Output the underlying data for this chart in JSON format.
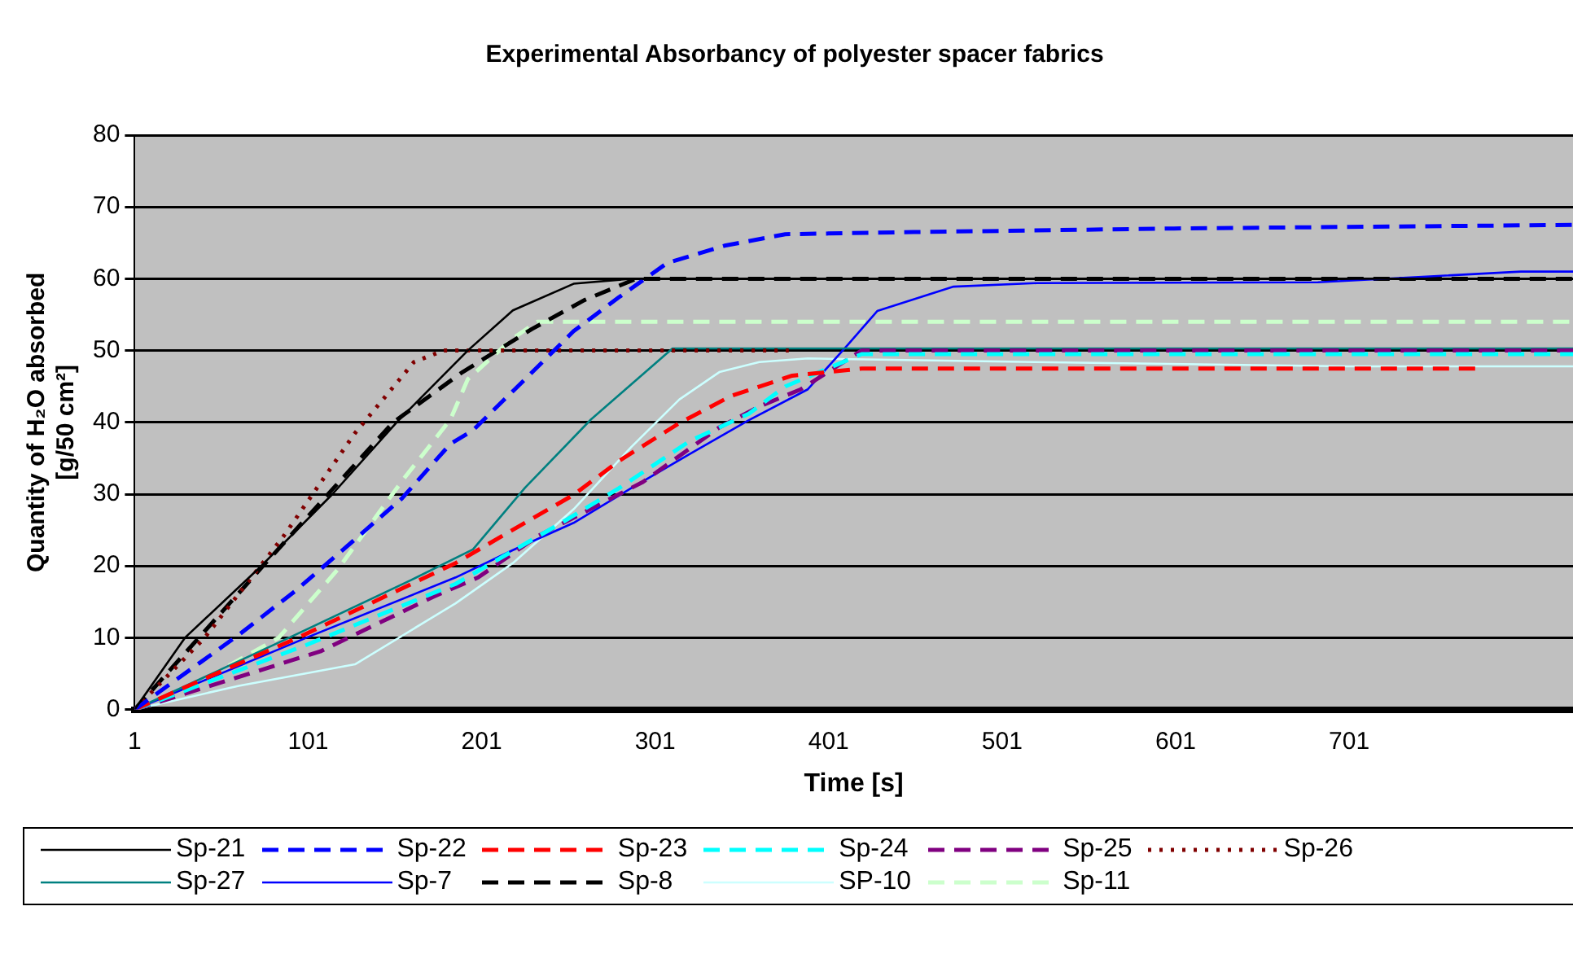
{
  "chart_data": {
    "type": "line",
    "title": "Experimental Absorbancy of polyester spacer fabrics",
    "xlabel": "Time [s]",
    "ylabel": "Quantity of H₂O absorbed [g/50 cm²]",
    "xlim": [
      1,
      830
    ],
    "xticks": [
      1,
      101,
      201,
      301,
      401,
      501,
      601,
      701
    ],
    "ylim": [
      0,
      80
    ],
    "yticks": [
      0,
      10,
      20,
      30,
      40,
      50,
      60,
      70,
      80
    ],
    "grid": "y",
    "legend": "bottom",
    "marker": "none",
    "series": [
      {
        "name": "Sp-21",
        "color": "#000000",
        "line_style": "solid",
        "x": [
          1,
          30,
          74,
          115,
          152,
          193,
          219,
          254,
          287,
          330,
          830
        ],
        "values": [
          0,
          10,
          20,
          30,
          40,
          50,
          55.6,
          59.3,
          60,
          60,
          60
        ]
      },
      {
        "name": "Sp-22",
        "color": "#0000ff",
        "line_style": "dashed",
        "x": [
          1,
          61,
          94,
          128,
          155,
          183,
          196,
          226,
          254,
          280,
          308,
          341,
          376,
          450,
          600,
          830
        ],
        "values": [
          0,
          10.4,
          16.6,
          23.7,
          29.4,
          37,
          38.9,
          46,
          52.7,
          57.4,
          62.2,
          64.6,
          66.2,
          66.5,
          67,
          67.5
        ]
      },
      {
        "name": "Sp-23",
        "color": "#ff0000",
        "line_style": "dashed",
        "x": [
          1,
          95,
          186,
          223,
          254,
          280,
          315,
          345,
          380,
          420,
          775
        ],
        "values": [
          0,
          10,
          20.4,
          25.6,
          29.9,
          34.6,
          39.9,
          43.7,
          46.5,
          47.5,
          47.5
        ]
      },
      {
        "name": "Sp-24",
        "color": "#00ffff",
        "line_style": "dashed",
        "x": [
          1,
          100,
          186,
          247,
          280,
          321,
          355,
          376,
          420,
          830
        ],
        "values": [
          0,
          9,
          17.5,
          26,
          30.8,
          37.4,
          41.2,
          45,
          49.5,
          49.5
        ]
      },
      {
        "name": "Sp-25",
        "color": "#800080",
        "line_style": "dashed",
        "x": [
          1,
          108,
          173,
          199,
          233,
          294,
          338,
          361,
          385,
          420,
          830
        ],
        "values": [
          0,
          8.1,
          15.7,
          18.4,
          24.1,
          31.7,
          39.3,
          42.2,
          44.6,
          50,
          50
        ]
      },
      {
        "name": "Sp-26",
        "color": "#800000",
        "line_style": "dotted",
        "x": [
          1,
          41,
          87,
          128,
          162,
          179,
          378
        ],
        "values": [
          0,
          9.9,
          24.2,
          38.5,
          48.4,
          50,
          50
        ]
      },
      {
        "name": "Sp-27",
        "color": "#008080",
        "line_style": "solid",
        "x": [
          1,
          90,
          160,
          196,
          226,
          264,
          311,
          830
        ],
        "values": [
          0,
          10,
          18,
          22.3,
          30.9,
          40.4,
          50.3,
          50.3
        ]
      },
      {
        "name": "Sp-7",
        "color": "#0000ff",
        "line_style": "solid",
        "x": [
          1,
          100,
          186,
          219,
          254,
          287,
          321,
          355,
          389,
          412,
          429,
          473,
          521,
          683,
          800,
          830
        ],
        "values": [
          0,
          10,
          18.4,
          22.2,
          26,
          30.8,
          35.6,
          40.3,
          44.6,
          50.8,
          55.5,
          58.9,
          59.4,
          59.5,
          61,
          61
        ]
      },
      {
        "name": "Sp-8",
        "color": "#000000",
        "line_style": "dashed",
        "x": [
          1,
          75,
          150,
          190,
          230,
          260,
          290,
          830
        ],
        "values": [
          0,
          20,
          40,
          47,
          53,
          57,
          60,
          60
        ]
      },
      {
        "name": "SP-10",
        "color": "#ccffff",
        "line_style": "solid",
        "x": [
          1,
          61,
          128,
          186,
          219,
          254,
          287,
          315,
          338,
          361,
          389,
          520,
          700,
          830
        ],
        "values": [
          0,
          3.3,
          6.3,
          14.8,
          20.4,
          27.9,
          36.5,
          43.2,
          47,
          48.4,
          48.9,
          48.4,
          47.8,
          47.8
        ]
      },
      {
        "name": "Sp-11",
        "color": "#ccffcc",
        "line_style": "dashed",
        "x": [
          1,
          25,
          84,
          118,
          155,
          183,
          193,
          219,
          233,
          830
        ],
        "values": [
          0,
          2,
          10,
          19.5,
          31.8,
          40.4,
          46,
          51.7,
          54,
          54
        ]
      }
    ]
  }
}
